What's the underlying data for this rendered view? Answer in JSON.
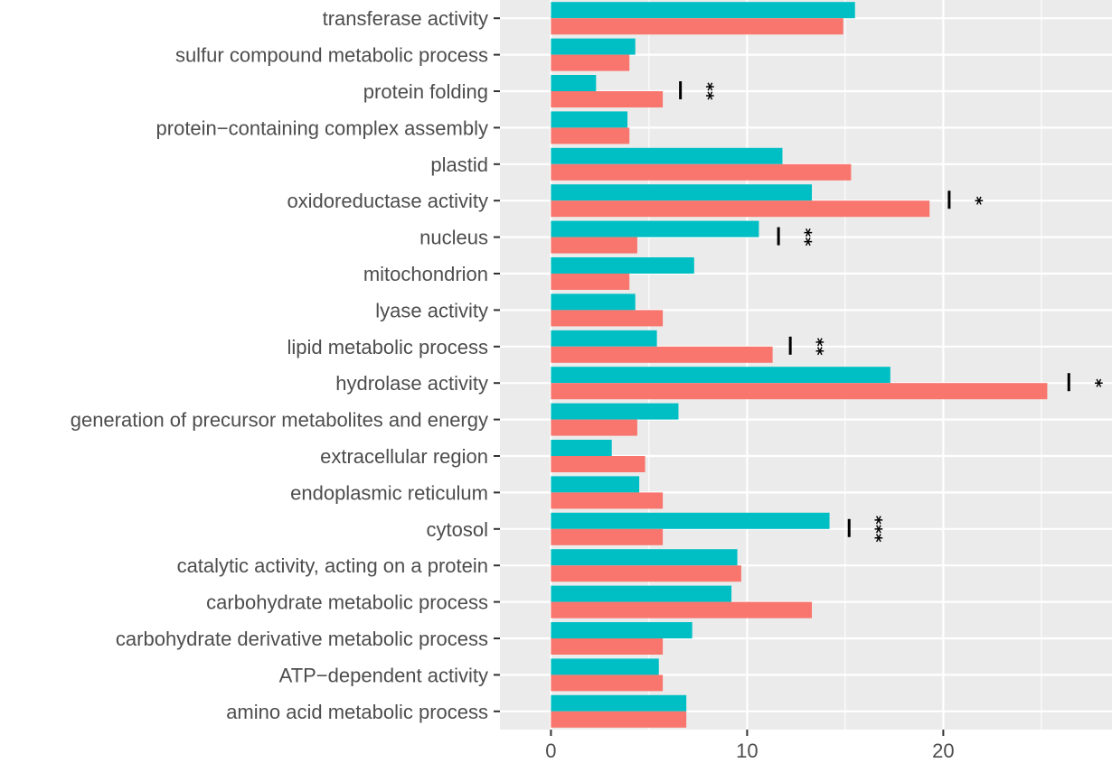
{
  "chart_data": {
    "type": "bar",
    "orientation": "horizontal",
    "categories": [
      "amino acid metabolic process",
      "ATP−dependent activity",
      "carbohydrate derivative metabolic process",
      "carbohydrate metabolic process",
      "catalytic activity, acting on a protein",
      "cytosol",
      "endoplasmic reticulum",
      "extracellular region",
      "generation of precursor metabolites and energy",
      "hydrolase activity",
      "lipid metabolic process",
      "lyase activity",
      "mitochondrion",
      "nucleus",
      "oxidoreductase activity",
      "plastid",
      "protein−containing complex assembly",
      "protein folding",
      "sulfur compound metabolic process",
      "transferase activity"
    ],
    "series": [
      {
        "color": "#00BFC4",
        "values": [
          6.9,
          5.5,
          7.2,
          9.2,
          9.5,
          14.2,
          4.5,
          3.1,
          6.5,
          17.3,
          5.4,
          4.3,
          7.3,
          10.6,
          13.3,
          11.8,
          3.9,
          2.3,
          4.3,
          15.5
        ]
      },
      {
        "color": "#F8766D",
        "values": [
          6.9,
          5.7,
          5.7,
          13.3,
          9.7,
          5.7,
          5.7,
          4.8,
          4.4,
          25.3,
          11.3,
          5.7,
          4.0,
          4.4,
          19.3,
          15.3,
          4.0,
          5.7,
          4.0,
          14.9
        ]
      }
    ],
    "significance": [
      {
        "category": "protein folding",
        "label": "**",
        "x": 6.6
      },
      {
        "category": "oxidoreductase activity",
        "label": "*",
        "x": 20.3
      },
      {
        "category": "nucleus",
        "label": "**",
        "x": 11.6
      },
      {
        "category": "lipid metabolic process",
        "label": "**",
        "x": 12.2
      },
      {
        "category": "hydrolase activity",
        "label": "*",
        "x": 26.4
      },
      {
        "category": "cytosol",
        "label": "***",
        "x": 15.2
      }
    ],
    "x_ticks": [
      0,
      10,
      20
    ],
    "xlim": [
      -2.6,
      28.6
    ],
    "grid": true,
    "panel_background": "#EBEBEB",
    "legend": "none",
    "title": "",
    "xlabel": "",
    "ylabel": ""
  }
}
